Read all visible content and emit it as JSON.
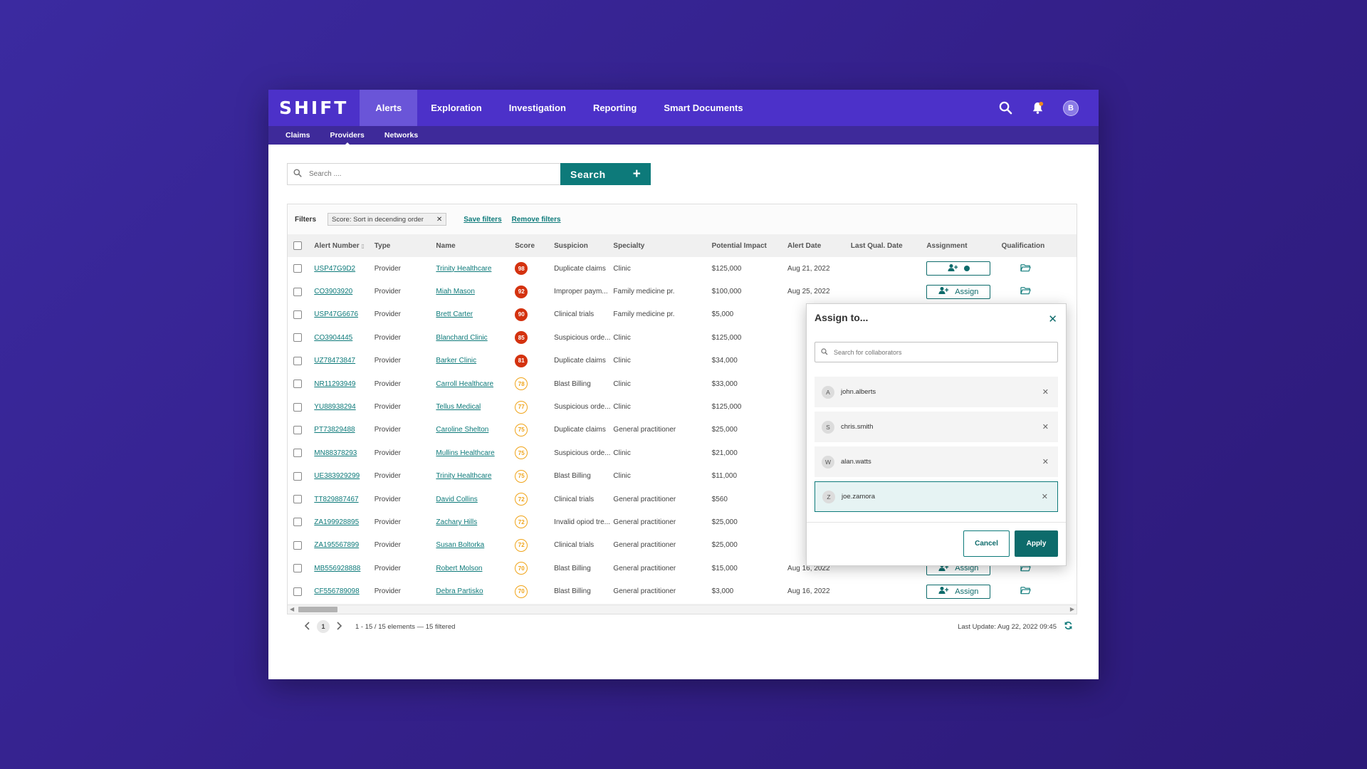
{
  "brand": "SHIFT",
  "nav": {
    "tabs": [
      {
        "label": "Alerts",
        "active": true
      },
      {
        "label": "Exploration"
      },
      {
        "label": "Investigation"
      },
      {
        "label": "Reporting"
      },
      {
        "label": "Smart Documents"
      }
    ],
    "avatar_initial": "B"
  },
  "subnav": [
    {
      "label": "Claims"
    },
    {
      "label": "Providers",
      "active": true
    },
    {
      "label": "Networks"
    }
  ],
  "search": {
    "placeholder": "Search ....",
    "button_label": "Search",
    "add_label": "+"
  },
  "filters": {
    "label": "Filters",
    "chip": "Score: Sort in decending order",
    "chip_remove": "✕",
    "save": "Save filters",
    "remove": "Remove filters"
  },
  "table": {
    "columns": [
      "Alert Number",
      "Type",
      "Name",
      "Score",
      "Suspicion",
      "Specialty",
      "Potential Impact",
      "Alert Date",
      "Last Qual. Date",
      "Assignment",
      "Qualification"
    ],
    "assign_label": "Assign",
    "rows": [
      {
        "id": "USP47G9D2",
        "type": "Provider",
        "name": "Trinity Healthcare",
        "score": "98",
        "level": "high",
        "suspicion": "Duplicate claims",
        "specialty": "Clinic",
        "impact": "$125,000",
        "date": "Aug 21, 2022",
        "assigned": true
      },
      {
        "id": "CO3903920",
        "type": "Provider",
        "name": "Miah Mason",
        "score": "92",
        "level": "high",
        "suspicion": "Improper paym...",
        "specialty": "Family medicine pr.",
        "impact": "$100,000",
        "date": "Aug 25, 2022"
      },
      {
        "id": "USP47G6676",
        "type": "Provider",
        "name": "Brett Carter",
        "score": "90",
        "level": "high",
        "suspicion": "Clinical trials",
        "specialty": "Family medicine pr.",
        "impact": "$5,000",
        "date": ""
      },
      {
        "id": "CO3904445",
        "type": "Provider",
        "name": "Blanchard Clinic",
        "score": "85",
        "level": "high",
        "suspicion": "Suspicious orde...",
        "specialty": "Clinic",
        "impact": "$125,000",
        "date": ""
      },
      {
        "id": "UZ78473847",
        "type": "Provider",
        "name": "Barker Clinic",
        "score": "81",
        "level": "high",
        "suspicion": "Duplicate claims",
        "specialty": "Clinic",
        "impact": "$34,000",
        "date": ""
      },
      {
        "id": "NR11293949",
        "type": "Provider",
        "name": "Carroll Healthcare",
        "score": "78",
        "level": "med",
        "suspicion": "Blast Billing",
        "specialty": "Clinic",
        "impact": "$33,000",
        "date": ""
      },
      {
        "id": "YU88938294",
        "type": "Provider",
        "name": "Tellus Medical",
        "score": "77",
        "level": "med",
        "suspicion": "Suspicious orde...",
        "specialty": "Clinic",
        "impact": "$125,000",
        "date": ""
      },
      {
        "id": "PT73829488",
        "type": "Provider",
        "name": "Caroline Shelton",
        "score": "75",
        "level": "med",
        "suspicion": "Duplicate claims",
        "specialty": "General practitioner",
        "impact": "$25,000",
        "date": ""
      },
      {
        "id": "MN88378293",
        "type": "Provider",
        "name": "Mullins Healthcare",
        "score": "75",
        "level": "med",
        "suspicion": "Suspicious orde...",
        "specialty": "Clinic",
        "impact": "$21,000",
        "date": ""
      },
      {
        "id": "UE383929299",
        "type": "Provider",
        "name": "Trinity Healthcare",
        "score": "75",
        "level": "med",
        "suspicion": "Blast Billing",
        "specialty": "Clinic",
        "impact": "$11,000",
        "date": ""
      },
      {
        "id": "TT829887467",
        "type": "Provider",
        "name": "David Collins",
        "score": "72",
        "level": "med",
        "suspicion": "Clinical trials",
        "specialty": "General practitioner",
        "impact": "$560",
        "date": ""
      },
      {
        "id": "ZA199928895",
        "type": "Provider",
        "name": "Zachary Hills",
        "score": "72",
        "level": "med",
        "suspicion": "Invalid opiod tre...",
        "specialty": "General practitioner",
        "impact": "$25,000",
        "date": ""
      },
      {
        "id": "ZA195567899",
        "type": "Provider",
        "name": "Susan Boltorka",
        "score": "72",
        "level": "med",
        "suspicion": "Clinical trials",
        "specialty": "General practitioner",
        "impact": "$25,000",
        "date": ""
      },
      {
        "id": "MB556928888",
        "type": "Provider",
        "name": "Robert Molson",
        "score": "70",
        "level": "med",
        "suspicion": "Blast Billing",
        "specialty": "General practitioner",
        "impact": "$15,000",
        "date": "Aug 16, 2022"
      },
      {
        "id": "CF556789098",
        "type": "Provider",
        "name": "Debra Partisko",
        "score": "70",
        "level": "med",
        "suspicion": "Blast Billing",
        "specialty": "General practitioner",
        "impact": "$3,000",
        "date": "Aug 16, 2022"
      }
    ]
  },
  "pagination": {
    "page": "1",
    "summary": "1 - 15 / 15 elements — 15 filtered"
  },
  "last_update": "Last Update: Aug 22, 2022 09:45",
  "modal": {
    "title": "Assign to...",
    "search_placeholder": "Search for collaborators",
    "collaborators": [
      {
        "initial": "A",
        "name": "john.alberts"
      },
      {
        "initial": "S",
        "name": "chris.smith"
      },
      {
        "initial": "W",
        "name": "alan.watts"
      },
      {
        "initial": "Z",
        "name": "joe.zamora",
        "selected": true
      }
    ],
    "cancel": "Cancel",
    "apply": "Apply"
  },
  "colors": {
    "nav": "#4c31c9",
    "subnav": "#3e2a9a",
    "teal": "#0d7a7a",
    "score_high": "#d4320f",
    "score_med": "#f0a419"
  }
}
